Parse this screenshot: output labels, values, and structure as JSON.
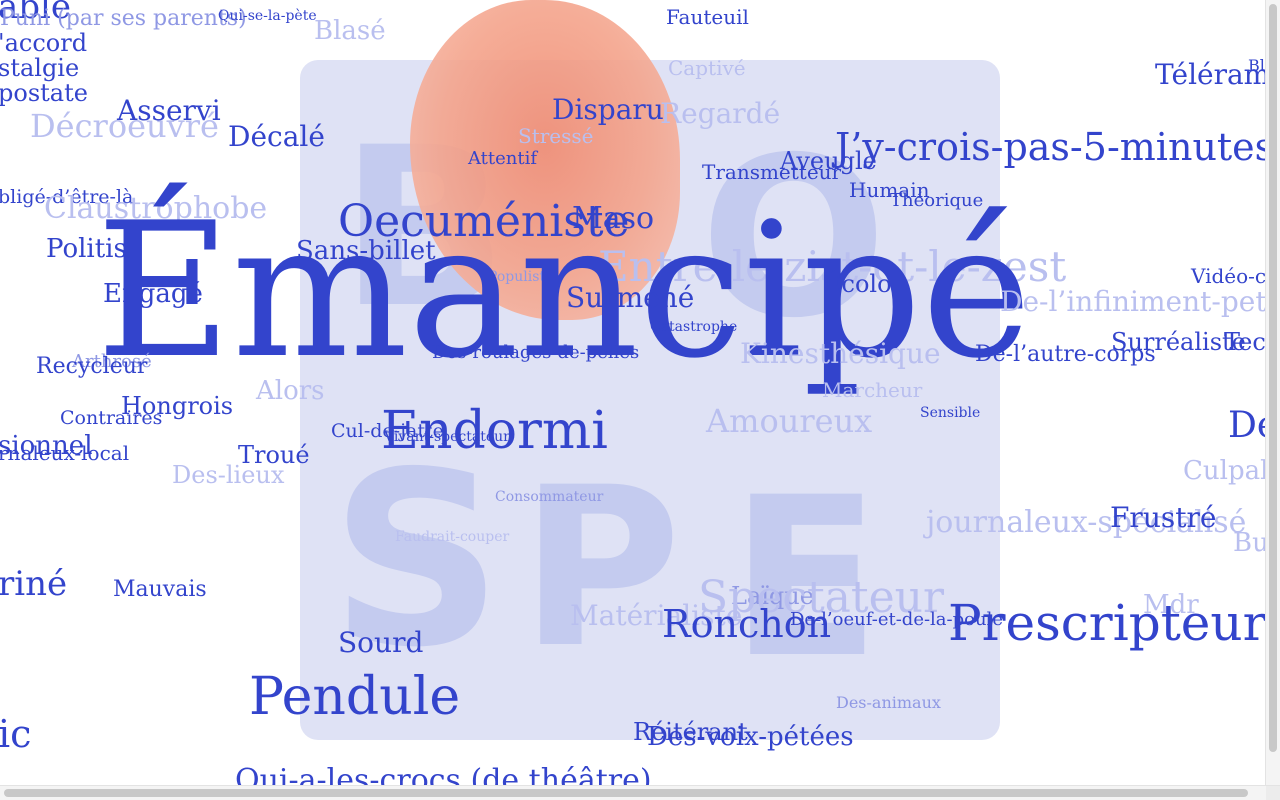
{
  "words": [
    {
      "text": "able",
      "cls": ""
    },
    {
      "text": "Puni (par ses parents)",
      "cls": "mid"
    },
    {
      "text": "Qui-se-la-pète",
      "cls": ""
    },
    {
      "text": "Blasé",
      "cls": "faint"
    },
    {
      "text": "Fauteuil",
      "cls": ""
    },
    {
      "text": "'accord",
      "cls": ""
    },
    {
      "text": "stalgie",
      "cls": ""
    },
    {
      "text": "postate",
      "cls": ""
    },
    {
      "text": "Asservi",
      "cls": ""
    },
    {
      "text": "Décroeuvré",
      "cls": "faint"
    },
    {
      "text": "Décalé",
      "cls": ""
    },
    {
      "text": "Disparu",
      "cls": ""
    },
    {
      "text": "Regardé",
      "cls": "faint"
    },
    {
      "text": "Stressé",
      "cls": "faint"
    },
    {
      "text": "Attentif",
      "cls": ""
    },
    {
      "text": "J’y-crois-pas-5-minutes",
      "cls": ""
    },
    {
      "text": "Aveugle",
      "cls": ""
    },
    {
      "text": "Transmetteur",
      "cls": ""
    },
    {
      "text": "Humain",
      "cls": ""
    },
    {
      "text": "Théorique",
      "cls": ""
    },
    {
      "text": "Télérama",
      "cls": ""
    },
    {
      "text": "bligé-d’être-là",
      "cls": ""
    },
    {
      "text": "Claustrophobe",
      "cls": "faint"
    },
    {
      "text": "Oecuméniste",
      "cls": ""
    },
    {
      "text": "Maso",
      "cls": ""
    },
    {
      "text": "Politisé",
      "cls": ""
    },
    {
      "text": "Sans-billet",
      "cls": ""
    },
    {
      "text": "Entre-le-zist-et-le-zest",
      "cls": "faint"
    },
    {
      "text": "Populiste",
      "cls": "mid"
    },
    {
      "text": "Vidéo-cl",
      "cls": ""
    },
    {
      "text": "Engagé",
      "cls": ""
    },
    {
      "text": "Émancipé",
      "cls": ""
    },
    {
      "text": "Surmené",
      "cls": ""
    },
    {
      "text": "Écolo",
      "cls": ""
    },
    {
      "text": "De-l’infiniment-petit",
      "cls": "faint"
    },
    {
      "text": "Catastrophe",
      "cls": ""
    },
    {
      "text": "Surréaliste",
      "cls": ""
    },
    {
      "text": "Tech",
      "cls": ""
    },
    {
      "text": "Arthrosé",
      "cls": "mid"
    },
    {
      "text": "Recycleur",
      "cls": ""
    },
    {
      "text": "Des-roulages-de-pelles",
      "cls": ""
    },
    {
      "text": "Kinesthésique",
      "cls": "faint"
    },
    {
      "text": "De-l’autre-corps",
      "cls": ""
    },
    {
      "text": "Alors",
      "cls": "faint"
    },
    {
      "text": "Marcheur",
      "cls": "faint"
    },
    {
      "text": "Hongrois",
      "cls": ""
    },
    {
      "text": "Contraires",
      "cls": ""
    },
    {
      "text": "Amoureux",
      "cls": "faint"
    },
    {
      "text": "Sensible",
      "cls": ""
    },
    {
      "text": "Dé",
      "cls": ""
    },
    {
      "text": "Cul-de-jatte",
      "cls": ""
    },
    {
      "text": "Endormi",
      "cls": ""
    },
    {
      "text": "Vivant-spectateur",
      "cls": ""
    },
    {
      "text": "sionnel",
      "cls": ""
    },
    {
      "text": "rnaleux-local",
      "cls": ""
    },
    {
      "text": "Troué",
      "cls": ""
    },
    {
      "text": "Des-lieux",
      "cls": "faint"
    },
    {
      "text": "Culpab",
      "cls": "faint"
    },
    {
      "text": "Consommateur",
      "cls": "mid"
    },
    {
      "text": "journaleux-spécialisé",
      "cls": "faint"
    },
    {
      "text": "Frustré",
      "cls": ""
    },
    {
      "text": "Faudrait-couper",
      "cls": "faint"
    },
    {
      "text": "Bu",
      "cls": "faint"
    },
    {
      "text": "riné",
      "cls": ""
    },
    {
      "text": "Mauvais",
      "cls": ""
    },
    {
      "text": "Laïque",
      "cls": "mid"
    },
    {
      "text": "Spectateur",
      "cls": "faint"
    },
    {
      "text": "Matérialiste",
      "cls": "faint"
    },
    {
      "text": "Mdr",
      "cls": "faint"
    },
    {
      "text": "Ronchon",
      "cls": ""
    },
    {
      "text": "De-l’oeuf-et-de-la-poule",
      "cls": ""
    },
    {
      "text": "Prescripteur",
      "cls": ""
    },
    {
      "text": "Sourd",
      "cls": ""
    },
    {
      "text": "Pendule",
      "cls": ""
    },
    {
      "text": "Des-animaux",
      "cls": "mid"
    },
    {
      "text": "ic",
      "cls": ""
    },
    {
      "text": "Réitérant",
      "cls": ""
    },
    {
      "text": "Des-voix-pétées",
      "cls": ""
    },
    {
      "text": "Qui-a-les-crocs (de théâtre)",
      "cls": ""
    },
    {
      "text": "Captivé",
      "cls": "faint"
    },
    {
      "text": "Bl",
      "cls": ""
    }
  ]
}
